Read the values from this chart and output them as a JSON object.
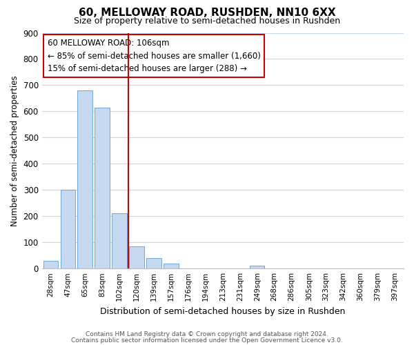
{
  "title": "60, MELLOWAY ROAD, RUSHDEN, NN10 6XX",
  "subtitle": "Size of property relative to semi-detached houses in Rushden",
  "xlabel": "Distribution of semi-detached houses by size in Rushden",
  "ylabel": "Number of semi-detached properties",
  "bar_labels": [
    "28sqm",
    "47sqm",
    "65sqm",
    "83sqm",
    "102sqm",
    "120sqm",
    "139sqm",
    "157sqm",
    "176sqm",
    "194sqm",
    "213sqm",
    "231sqm",
    "249sqm",
    "268sqm",
    "286sqm",
    "305sqm",
    "323sqm",
    "342sqm",
    "360sqm",
    "379sqm",
    "397sqm"
  ],
  "bar_values": [
    30,
    300,
    680,
    615,
    210,
    85,
    40,
    18,
    0,
    0,
    0,
    0,
    10,
    0,
    0,
    0,
    0,
    0,
    0,
    0,
    0
  ],
  "bar_color": "#c5d8f0",
  "bar_edge_color": "#5a9fd4",
  "vline_bar_index": 4,
  "vline_color": "#cc0000",
  "ylim": [
    0,
    900
  ],
  "yticks": [
    0,
    100,
    200,
    300,
    400,
    500,
    600,
    700,
    800,
    900
  ],
  "annotation_title": "60 MELLOWAY ROAD: 106sqm",
  "annotation_line1": "← 85% of semi-detached houses are smaller (1,660)",
  "annotation_line2": "15% of semi-detached houses are larger (288) →",
  "annotation_box_facecolor": "#ffffff",
  "annotation_box_edgecolor": "#cc0000",
  "footer_line1": "Contains HM Land Registry data © Crown copyright and database right 2024.",
  "footer_line2": "Contains public sector information licensed under the Open Government Licence v3.0.",
  "background_color": "#ffffff",
  "grid_color": "#c8d8ec"
}
